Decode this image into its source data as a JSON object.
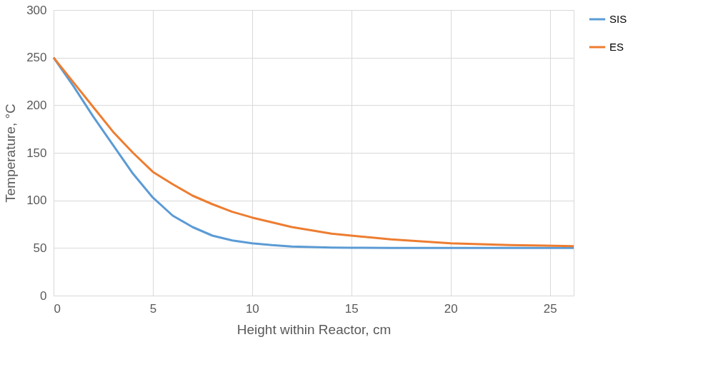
{
  "chart_data": {
    "type": "line",
    "xlabel": "Height within Reactor, cm",
    "ylabel": "Temperature, °C",
    "xlim": [
      0,
      26.2
    ],
    "xticks": [
      0,
      5,
      10,
      15,
      20,
      25
    ],
    "ylim": [
      0,
      300
    ],
    "yticks": [
      0,
      50,
      100,
      150,
      200,
      250,
      300
    ],
    "grid": true,
    "legend": "top right",
    "line_style": "solid",
    "marker": "none",
    "series": [
      {
        "name": "SIS",
        "color": "#5b9bd5",
        "x": [
          0,
          1,
          2,
          3,
          4,
          5,
          6,
          7,
          8,
          9,
          10,
          11,
          12,
          13,
          14,
          15,
          17,
          20,
          23,
          26.2
        ],
        "values": [
          250,
          220,
          188,
          158,
          128,
          103,
          84,
          72,
          63,
          58,
          55,
          53,
          51.5,
          51,
          50.5,
          50.3,
          50,
          50,
          50,
          50
        ]
      },
      {
        "name": "ES",
        "color": "#ed7d31",
        "x": [
          0,
          1,
          2,
          3,
          4,
          5,
          6,
          7,
          8,
          9,
          10,
          12,
          14,
          15,
          17,
          20,
          23,
          26.2
        ],
        "values": [
          250,
          224,
          198,
          172,
          150,
          130,
          117,
          105,
          96,
          88,
          82,
          72,
          65,
          63,
          59,
          55,
          53,
          52
        ]
      }
    ]
  }
}
